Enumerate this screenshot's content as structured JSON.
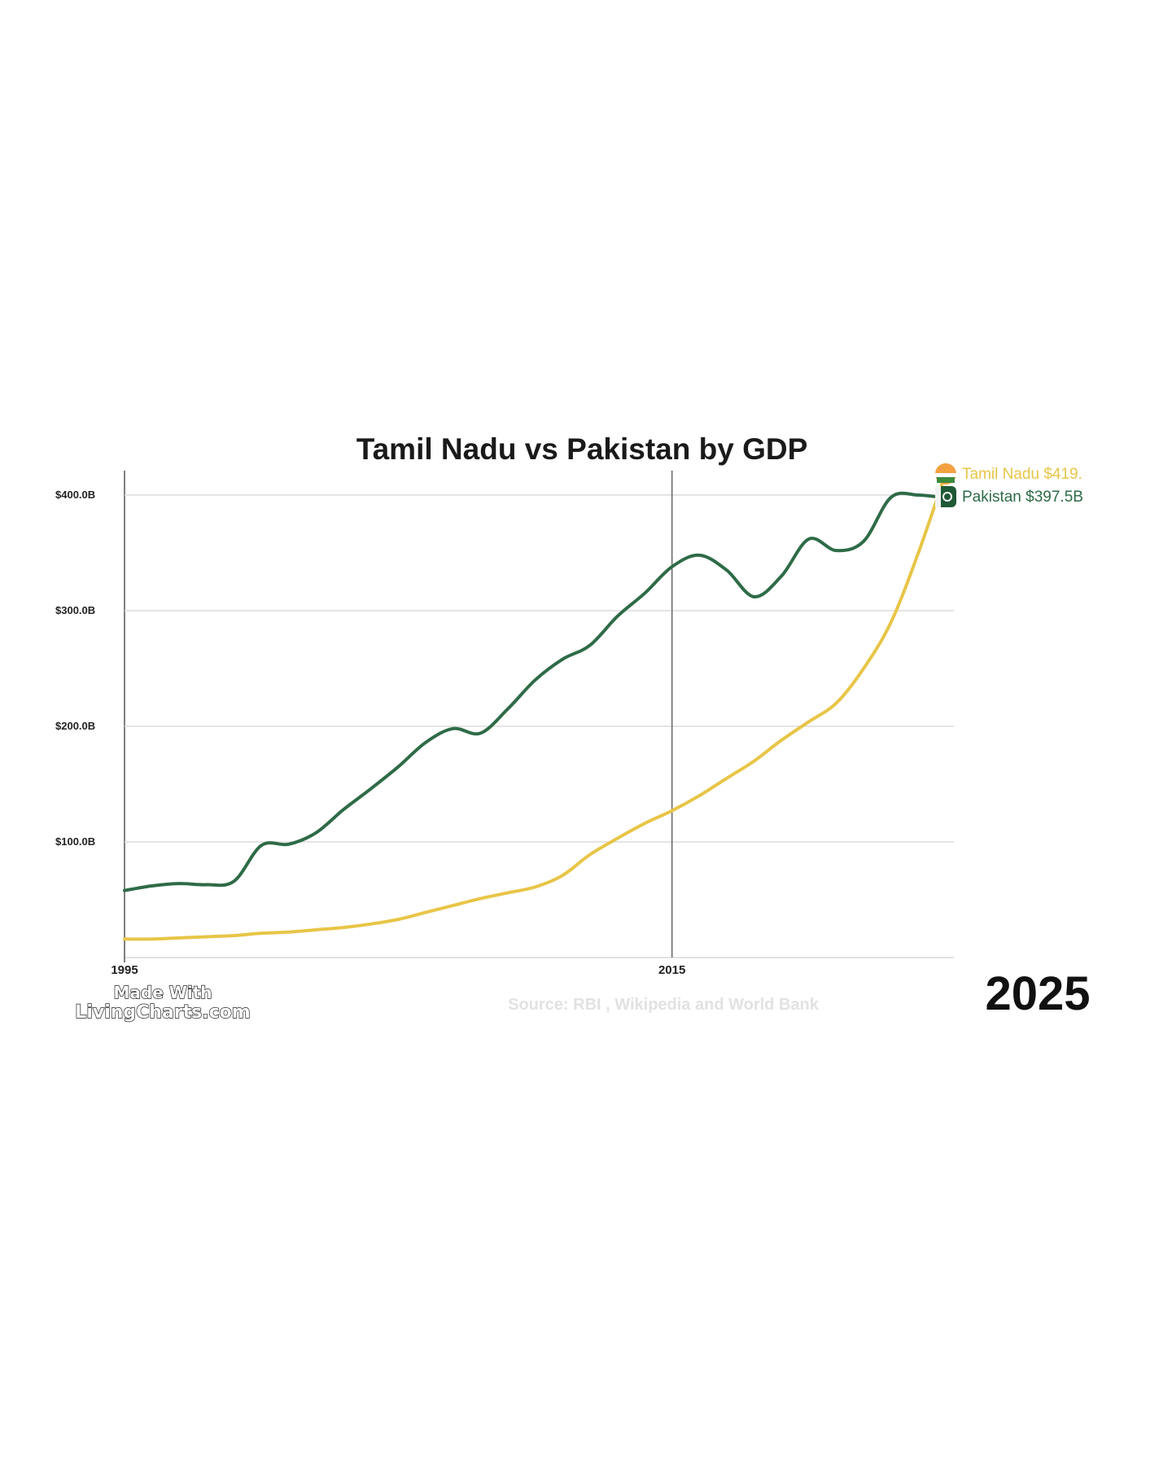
{
  "chart_data": {
    "type": "line",
    "title": "Tamil Nadu vs Pakistan by GDP",
    "xlabel": "",
    "ylabel": "",
    "xlim": [
      1995,
      2025
    ],
    "ylim": [
      0,
      400
    ],
    "x_ticks": [
      {
        "value": 1995,
        "label": "1995"
      },
      {
        "value": 2015,
        "label": "2015"
      }
    ],
    "y_ticks": [
      {
        "value": 100,
        "label": "$100.0B"
      },
      {
        "value": 200,
        "label": "$200.0B"
      },
      {
        "value": 300,
        "label": "$300.0B"
      },
      {
        "value": 400,
        "label": "$400.0B"
      }
    ],
    "grid": true,
    "reference_line_x": 2015,
    "current_year": "2025",
    "source": "Source: RBI , Wikipedia and World Bank",
    "watermark": [
      "Made With",
      "LivingCharts.com"
    ],
    "series": [
      {
        "name": "Pakistan",
        "color": "#2e6b47",
        "icon": "pakistan-flag-icon",
        "end_label": "Pakistan $397.5B",
        "x": [
          1995,
          1996,
          1997,
          1998,
          1999,
          2000,
          2001,
          2002,
          2003,
          2004,
          2005,
          2006,
          2007,
          2008,
          2009,
          2010,
          2011,
          2012,
          2013,
          2014,
          2015,
          2016,
          2017,
          2018,
          2019,
          2020,
          2021,
          2022,
          2023,
          2024,
          2025
        ],
        "values": [
          58,
          62,
          64,
          63,
          66,
          97,
          98,
          108,
          128,
          146,
          165,
          186,
          198,
          194,
          215,
          240,
          258,
          270,
          295,
          315,
          338,
          348,
          335,
          312,
          330,
          362,
          352,
          360,
          398,
          400,
          397.5
        ]
      },
      {
        "name": "Tamil Nadu",
        "color": "#e8c547",
        "icon": "india-flag-icon",
        "end_label": "Tamil Nadu $419.",
        "x": [
          1995,
          1996,
          1997,
          1998,
          1999,
          2000,
          2001,
          2002,
          2003,
          2004,
          2005,
          2006,
          2007,
          2008,
          2009,
          2010,
          2011,
          2012,
          2013,
          2014,
          2015,
          2016,
          2017,
          2018,
          2019,
          2020,
          2021,
          2022,
          2023,
          2024,
          2025
        ],
        "values": [
          16,
          16,
          17,
          18,
          19,
          21,
          22,
          24,
          26,
          29,
          33,
          39,
          45,
          51,
          56,
          61,
          71,
          89,
          103,
          116,
          127,
          140,
          155,
          170,
          188,
          204,
          220,
          250,
          290,
          350,
          419
        ]
      }
    ]
  }
}
